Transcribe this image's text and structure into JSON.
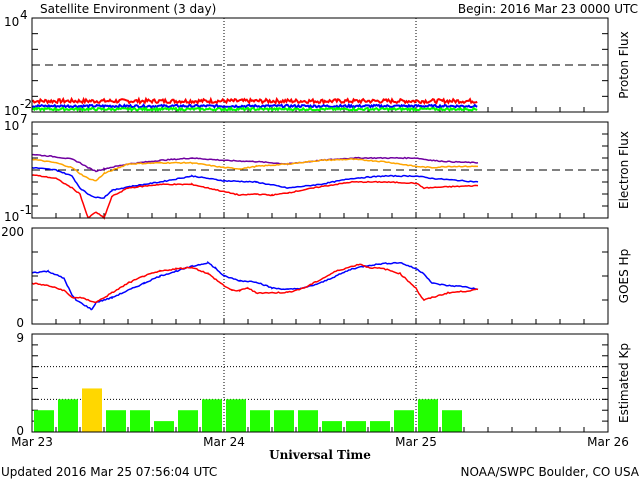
{
  "header": {
    "title": "Satellite Environment (3 day)",
    "begin": "Begin:  2016 Mar 23 0000 UTC"
  },
  "footer": {
    "updated": "Updated 2016 Mar 25 07:56:04 UTC",
    "credit": "NOAA/SWPC Boulder, CO USA"
  },
  "chart_data": [
    {
      "type": "line",
      "title": "Proton Flux",
      "ylabel": "Proton Flux",
      "yscale": "log",
      "ylim_exp": [
        -2,
        4
      ],
      "tick_labels": [
        "10",
        "4",
        "10",
        "-2"
      ],
      "threshold_exp": 1,
      "xlim_hours": [
        0,
        72
      ],
      "noisy": true,
      "series": [
        {
          "name": "red",
          "color": "#ff0000",
          "level_exp": -1.35,
          "noise": 0.25,
          "end_hour": 55.75
        },
        {
          "name": "blue",
          "color": "#0000ff",
          "level_exp": -1.65,
          "noise": 0.15,
          "end_hour": 55.75
        },
        {
          "name": "green",
          "color": "#00ff00",
          "level_exp": -1.85,
          "noise": 0.15,
          "end_hour": 55.75
        }
      ]
    },
    {
      "type": "line",
      "title": "Electron Flux",
      "ylabel": "Electron Flux",
      "yscale": "log",
      "ylim_exp": [
        -1,
        7
      ],
      "tick_labels": [
        "10",
        "7",
        "10",
        "-1"
      ],
      "threshold_exp": 3,
      "xlim_hours": [
        0,
        72
      ],
      "series": [
        {
          "name": "purple",
          "color": "#7000a0",
          "points": [
            [
              0,
              4.3
            ],
            [
              3,
              4.1
            ],
            [
              5,
              3.9
            ],
            [
              6,
              3.6
            ],
            [
              7,
              3.2
            ],
            [
              8,
              2.9
            ],
            [
              9,
              3.1
            ],
            [
              12,
              3.5
            ],
            [
              16,
              3.8
            ],
            [
              20,
              4.0
            ],
            [
              24,
              3.8
            ],
            [
              28,
              3.7
            ],
            [
              32,
              3.5
            ],
            [
              36,
              3.8
            ],
            [
              40,
              4.0
            ],
            [
              44,
              4.0
            ],
            [
              48,
              4.0
            ],
            [
              50,
              3.8
            ],
            [
              52,
              3.7
            ],
            [
              55.75,
              3.6
            ]
          ]
        },
        {
          "name": "orange",
          "color": "#ffa500",
          "points": [
            [
              0,
              3.9
            ],
            [
              3,
              3.6
            ],
            [
              5,
              3.2
            ],
            [
              6,
              2.7
            ],
            [
              7,
              2.3
            ],
            [
              8,
              2.1
            ],
            [
              9,
              2.7
            ],
            [
              12,
              3.5
            ],
            [
              16,
              3.6
            ],
            [
              20,
              3.6
            ],
            [
              24,
              3.2
            ],
            [
              26,
              3.1
            ],
            [
              28,
              3.3
            ],
            [
              32,
              3.5
            ],
            [
              36,
              3.8
            ],
            [
              40,
              3.9
            ],
            [
              44,
              3.7
            ],
            [
              48,
              3.3
            ],
            [
              50,
              3.2
            ],
            [
              52,
              3.3
            ],
            [
              55.75,
              3.3
            ]
          ]
        },
        {
          "name": "blue",
          "color": "#0000ff",
          "points": [
            [
              0,
              3.2
            ],
            [
              3,
              3.0
            ],
            [
              5,
              2.5
            ],
            [
              6,
              1.5
            ],
            [
              7,
              1.0
            ],
            [
              8,
              0.7
            ],
            [
              9,
              0.7
            ],
            [
              10,
              1.3
            ],
            [
              12,
              1.6
            ],
            [
              16,
              2.0
            ],
            [
              20,
              2.5
            ],
            [
              24,
              2.1
            ],
            [
              28,
              2.0
            ],
            [
              32,
              1.5
            ],
            [
              36,
              1.8
            ],
            [
              40,
              2.3
            ],
            [
              44,
              2.5
            ],
            [
              48,
              2.5
            ],
            [
              50,
              2.3
            ],
            [
              52,
              2.2
            ],
            [
              55.75,
              2.0
            ]
          ]
        },
        {
          "name": "red",
          "color": "#ff0000",
          "points": [
            [
              0,
              2.6
            ],
            [
              3,
              2.3
            ],
            [
              5,
              1.5
            ],
            [
              6,
              1.0
            ],
            [
              7,
              -1.0
            ],
            [
              8,
              -0.5
            ],
            [
              9,
              -1.0
            ],
            [
              10,
              0.8
            ],
            [
              12,
              1.5
            ],
            [
              16,
              1.8
            ],
            [
              20,
              1.8
            ],
            [
              24,
              1.2
            ],
            [
              26,
              0.9
            ],
            [
              28,
              1.0
            ],
            [
              30,
              0.9
            ],
            [
              32,
              1.1
            ],
            [
              36,
              1.6
            ],
            [
              40,
              2.0
            ],
            [
              44,
              2.0
            ],
            [
              48,
              1.9
            ],
            [
              49,
              1.5
            ],
            [
              52,
              1.6
            ],
            [
              55.75,
              1.7
            ]
          ]
        }
      ]
    },
    {
      "type": "line",
      "title": "GOES Hp",
      "ylabel": "GOES Hp",
      "ylim": [
        0,
        200
      ],
      "tick_labels": [
        "200",
        "0"
      ],
      "xlim_hours": [
        0,
        72
      ],
      "series": [
        {
          "name": "blue",
          "color": "#0000ff",
          "points": [
            [
              0,
              107
            ],
            [
              2,
              110
            ],
            [
              4,
              95
            ],
            [
              5,
              60
            ],
            [
              5.5,
              50
            ],
            [
              6,
              45
            ],
            [
              7,
              35
            ],
            [
              7.5,
              30
            ],
            [
              8,
              45
            ],
            [
              10,
              55
            ],
            [
              12,
              70
            ],
            [
              14,
              85
            ],
            [
              16,
              100
            ],
            [
              18,
              110
            ],
            [
              20,
              120
            ],
            [
              22,
              128
            ],
            [
              23,
              115
            ],
            [
              24,
              100
            ],
            [
              26,
              90
            ],
            [
              28,
              88
            ],
            [
              30,
              75
            ],
            [
              32,
              72
            ],
            [
              34,
              75
            ],
            [
              36,
              85
            ],
            [
              38,
              100
            ],
            [
              40,
              115
            ],
            [
              42,
              122
            ],
            [
              44,
              126
            ],
            [
              46,
              128
            ],
            [
              48,
              115
            ],
            [
              49,
              105
            ],
            [
              50,
              85
            ],
            [
              52,
              80
            ],
            [
              54,
              78
            ],
            [
              55.75,
              72
            ]
          ]
        },
        {
          "name": "red",
          "color": "#ff0000",
          "points": [
            [
              0,
              85
            ],
            [
              2,
              80
            ],
            [
              4,
              70
            ],
            [
              5,
              55
            ],
            [
              6,
              55
            ],
            [
              7,
              50
            ],
            [
              8,
              45
            ],
            [
              10,
              65
            ],
            [
              12,
              85
            ],
            [
              14,
              100
            ],
            [
              16,
              110
            ],
            [
              18,
              115
            ],
            [
              20,
              118
            ],
            [
              22,
              105
            ],
            [
              24,
              80
            ],
            [
              25,
              70
            ],
            [
              26,
              70
            ],
            [
              27,
              75
            ],
            [
              28,
              65
            ],
            [
              30,
              65
            ],
            [
              32,
              66
            ],
            [
              34,
              75
            ],
            [
              36,
              92
            ],
            [
              38,
              110
            ],
            [
              40,
              120
            ],
            [
              41,
              125
            ],
            [
              42,
              118
            ],
            [
              44,
              115
            ],
            [
              46,
              105
            ],
            [
              47,
              90
            ],
            [
              48,
              75
            ],
            [
              48.5,
              60
            ],
            [
              49,
              50
            ],
            [
              50,
              55
            ],
            [
              52,
              65
            ],
            [
              54,
              68
            ],
            [
              55.75,
              72
            ]
          ]
        }
      ]
    },
    {
      "type": "bar",
      "title": "Estimated Kp",
      "ylabel": "Estimated Kp",
      "ylim": [
        0,
        9
      ],
      "tick_labels": [
        "9",
        "0"
      ],
      "bar_hours": 3,
      "values": [
        2,
        3,
        4,
        2,
        2,
        1,
        2,
        3,
        3,
        2,
        2,
        2,
        1,
        1,
        1,
        2,
        3,
        2
      ],
      "colors": {
        "quiet": "#22ff00",
        "active": "#ffd700"
      },
      "active_threshold": 4,
      "xlabel": "Universal Time",
      "x_tick_labels": [
        "Mar 23",
        "Mar 24",
        "Mar 25",
        "Mar 26"
      ]
    }
  ]
}
